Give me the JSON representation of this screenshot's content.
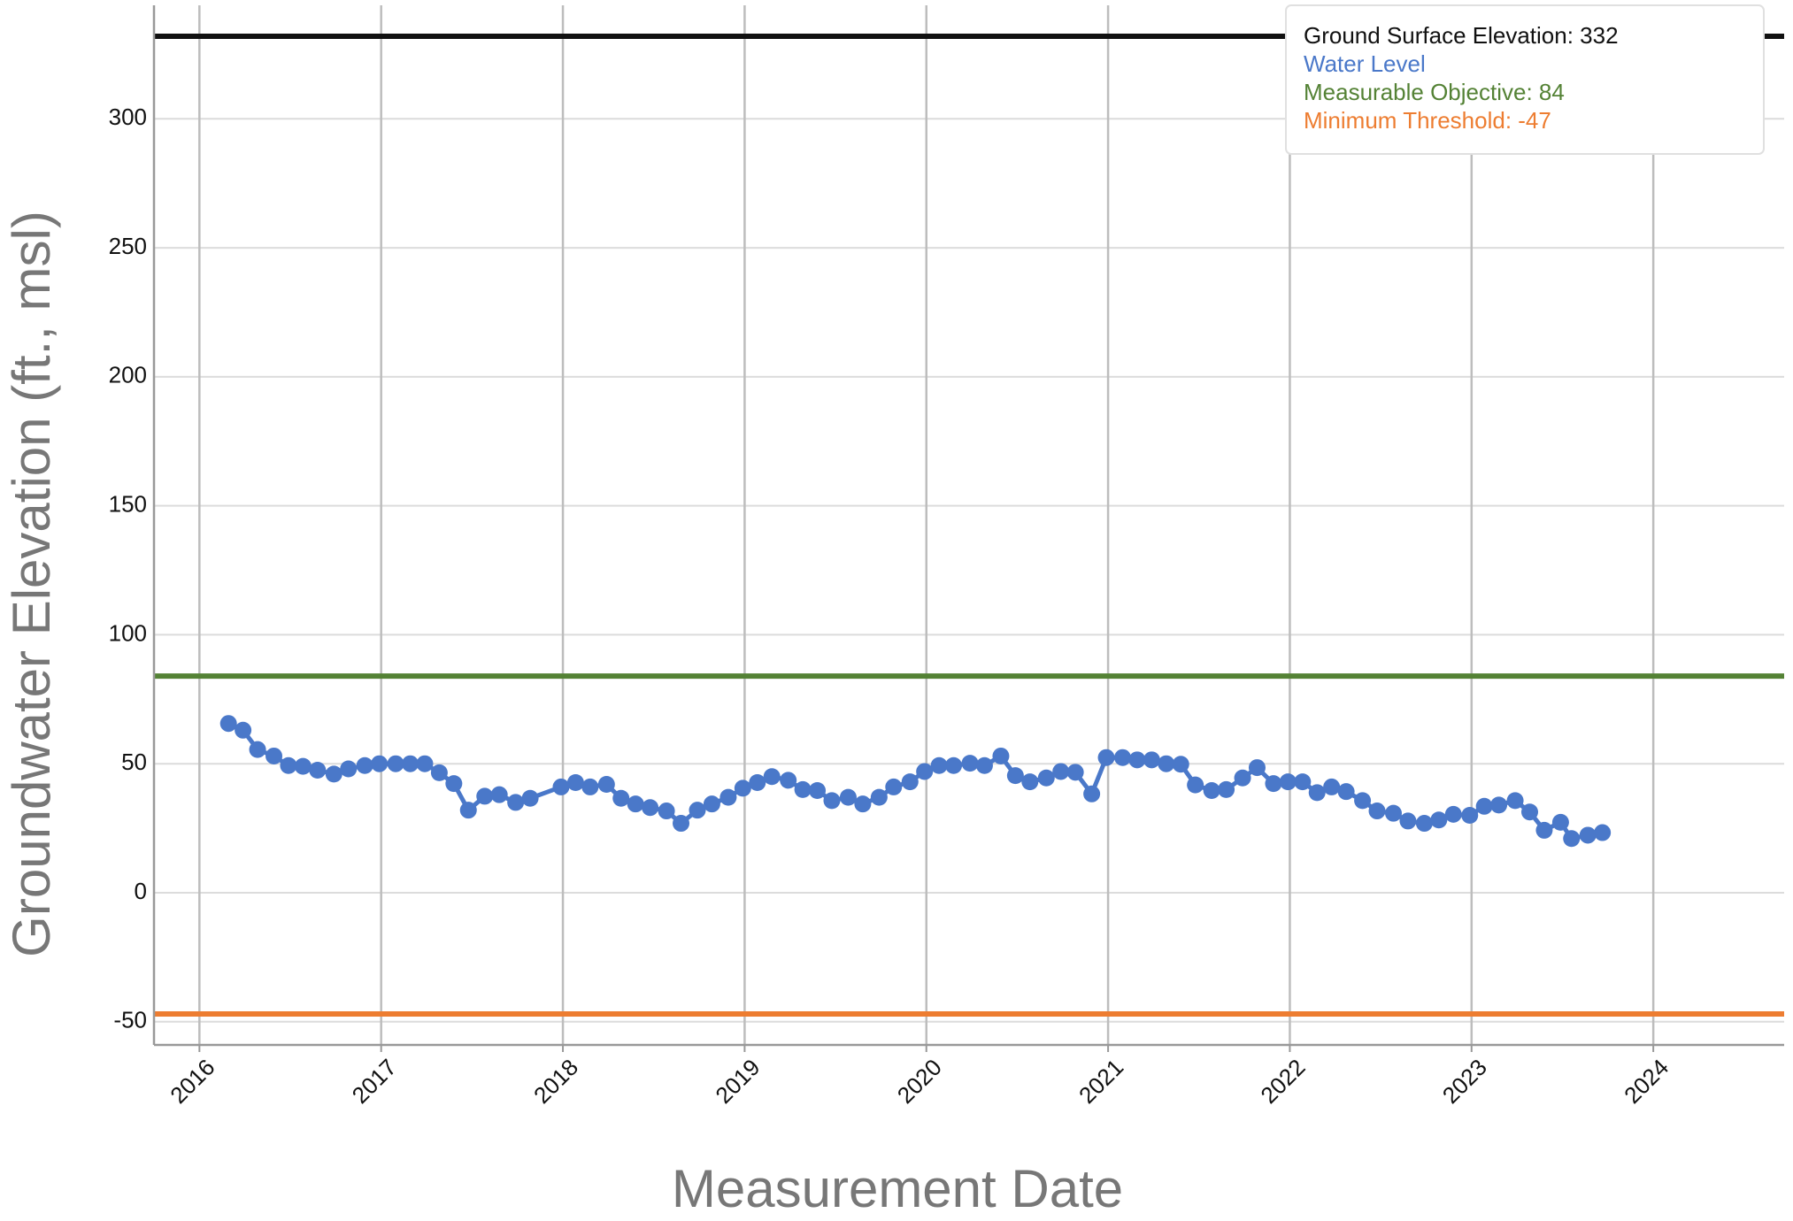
{
  "chart_data": {
    "type": "line",
    "x_label": "Measurement Date",
    "y_label": "Groundwater Elevation (ft., msl)",
    "x": [
      2016.16,
      2016.24,
      2016.32,
      2016.41,
      2016.49,
      2016.57,
      2016.65,
      2016.74,
      2016.82,
      2016.91,
      2016.99,
      2017.08,
      2017.16,
      2017.24,
      2017.32,
      2017.4,
      2017.48,
      2017.57,
      2017.65,
      2017.74,
      2017.82,
      2017.99,
      2018.07,
      2018.15,
      2018.24,
      2018.32,
      2018.4,
      2018.48,
      2018.57,
      2018.65,
      2018.74,
      2018.82,
      2018.91,
      2018.99,
      2019.07,
      2019.15,
      2019.24,
      2019.32,
      2019.4,
      2019.48,
      2019.57,
      2019.65,
      2019.74,
      2019.82,
      2019.91,
      2019.99,
      2020.07,
      2020.15,
      2020.24,
      2020.32,
      2020.41,
      2020.49,
      2020.57,
      2020.66,
      2020.74,
      2020.82,
      2020.91,
      2020.99,
      2021.08,
      2021.16,
      2021.24,
      2021.32,
      2021.4,
      2021.48,
      2021.57,
      2021.65,
      2021.74,
      2021.82,
      2021.91,
      2021.99,
      2022.07,
      2022.15,
      2022.23,
      2022.31,
      2022.4,
      2022.48,
      2022.57,
      2022.65,
      2022.74,
      2022.82,
      2022.9,
      2022.99,
      2023.07,
      2023.15,
      2023.24,
      2023.32,
      2023.4,
      2023.49,
      2023.55,
      2023.64,
      2023.72
    ],
    "series": [
      {
        "name": "Water Level",
        "color": "#4a78c9",
        "values": [
          65.6,
          63,
          55.5,
          53,
          49.3,
          49,
          47.5,
          46,
          48,
          49.3,
          50,
          50,
          50,
          50,
          46.5,
          42.3,
          32,
          37.4,
          38,
          35,
          36.6,
          41,
          42.7,
          41,
          42,
          36.6,
          34.4,
          33,
          31.7,
          26.9,
          32,
          34.4,
          37,
          40.5,
          42.7,
          45,
          43.6,
          40,
          39.6,
          35.7,
          37,
          34.4,
          37,
          41,
          43,
          47,
          49.3,
          49.3,
          50.2,
          49.3,
          53,
          45.4,
          43,
          44.5,
          47,
          46.7,
          38.3,
          52.4,
          52.4,
          51.5,
          51.5,
          50,
          49.8,
          41.8,
          39.6,
          40,
          44.5,
          48.5,
          42.3,
          43,
          43,
          38.8,
          41,
          39.2,
          35.7,
          31.7,
          30.8,
          27.8,
          26.9,
          28.2,
          30.4,
          30,
          33.5,
          34,
          35.7,
          31.3,
          24.2,
          27.3,
          21,
          22.3,
          23.3
        ]
      }
    ],
    "reference_lines": [
      {
        "label": "Ground Surface Elevation: 332",
        "value": 332,
        "color": "#111111"
      },
      {
        "label": "Measurable Objective: 84",
        "value": 84,
        "color": "#548235"
      },
      {
        "label": "Minimum Threshold: -47",
        "value": -47,
        "color": "#ed7d31"
      }
    ],
    "xlim": [
      2015.75,
      2024.72
    ],
    "xticks": [
      2016,
      2017,
      2018,
      2019,
      2020,
      2021,
      2022,
      2023,
      2024
    ],
    "ylim": [
      -59,
      344
    ],
    "yticks": [
      -50,
      0,
      50,
      100,
      150,
      200,
      250,
      300
    ],
    "grid": true,
    "legend": "top-right"
  }
}
